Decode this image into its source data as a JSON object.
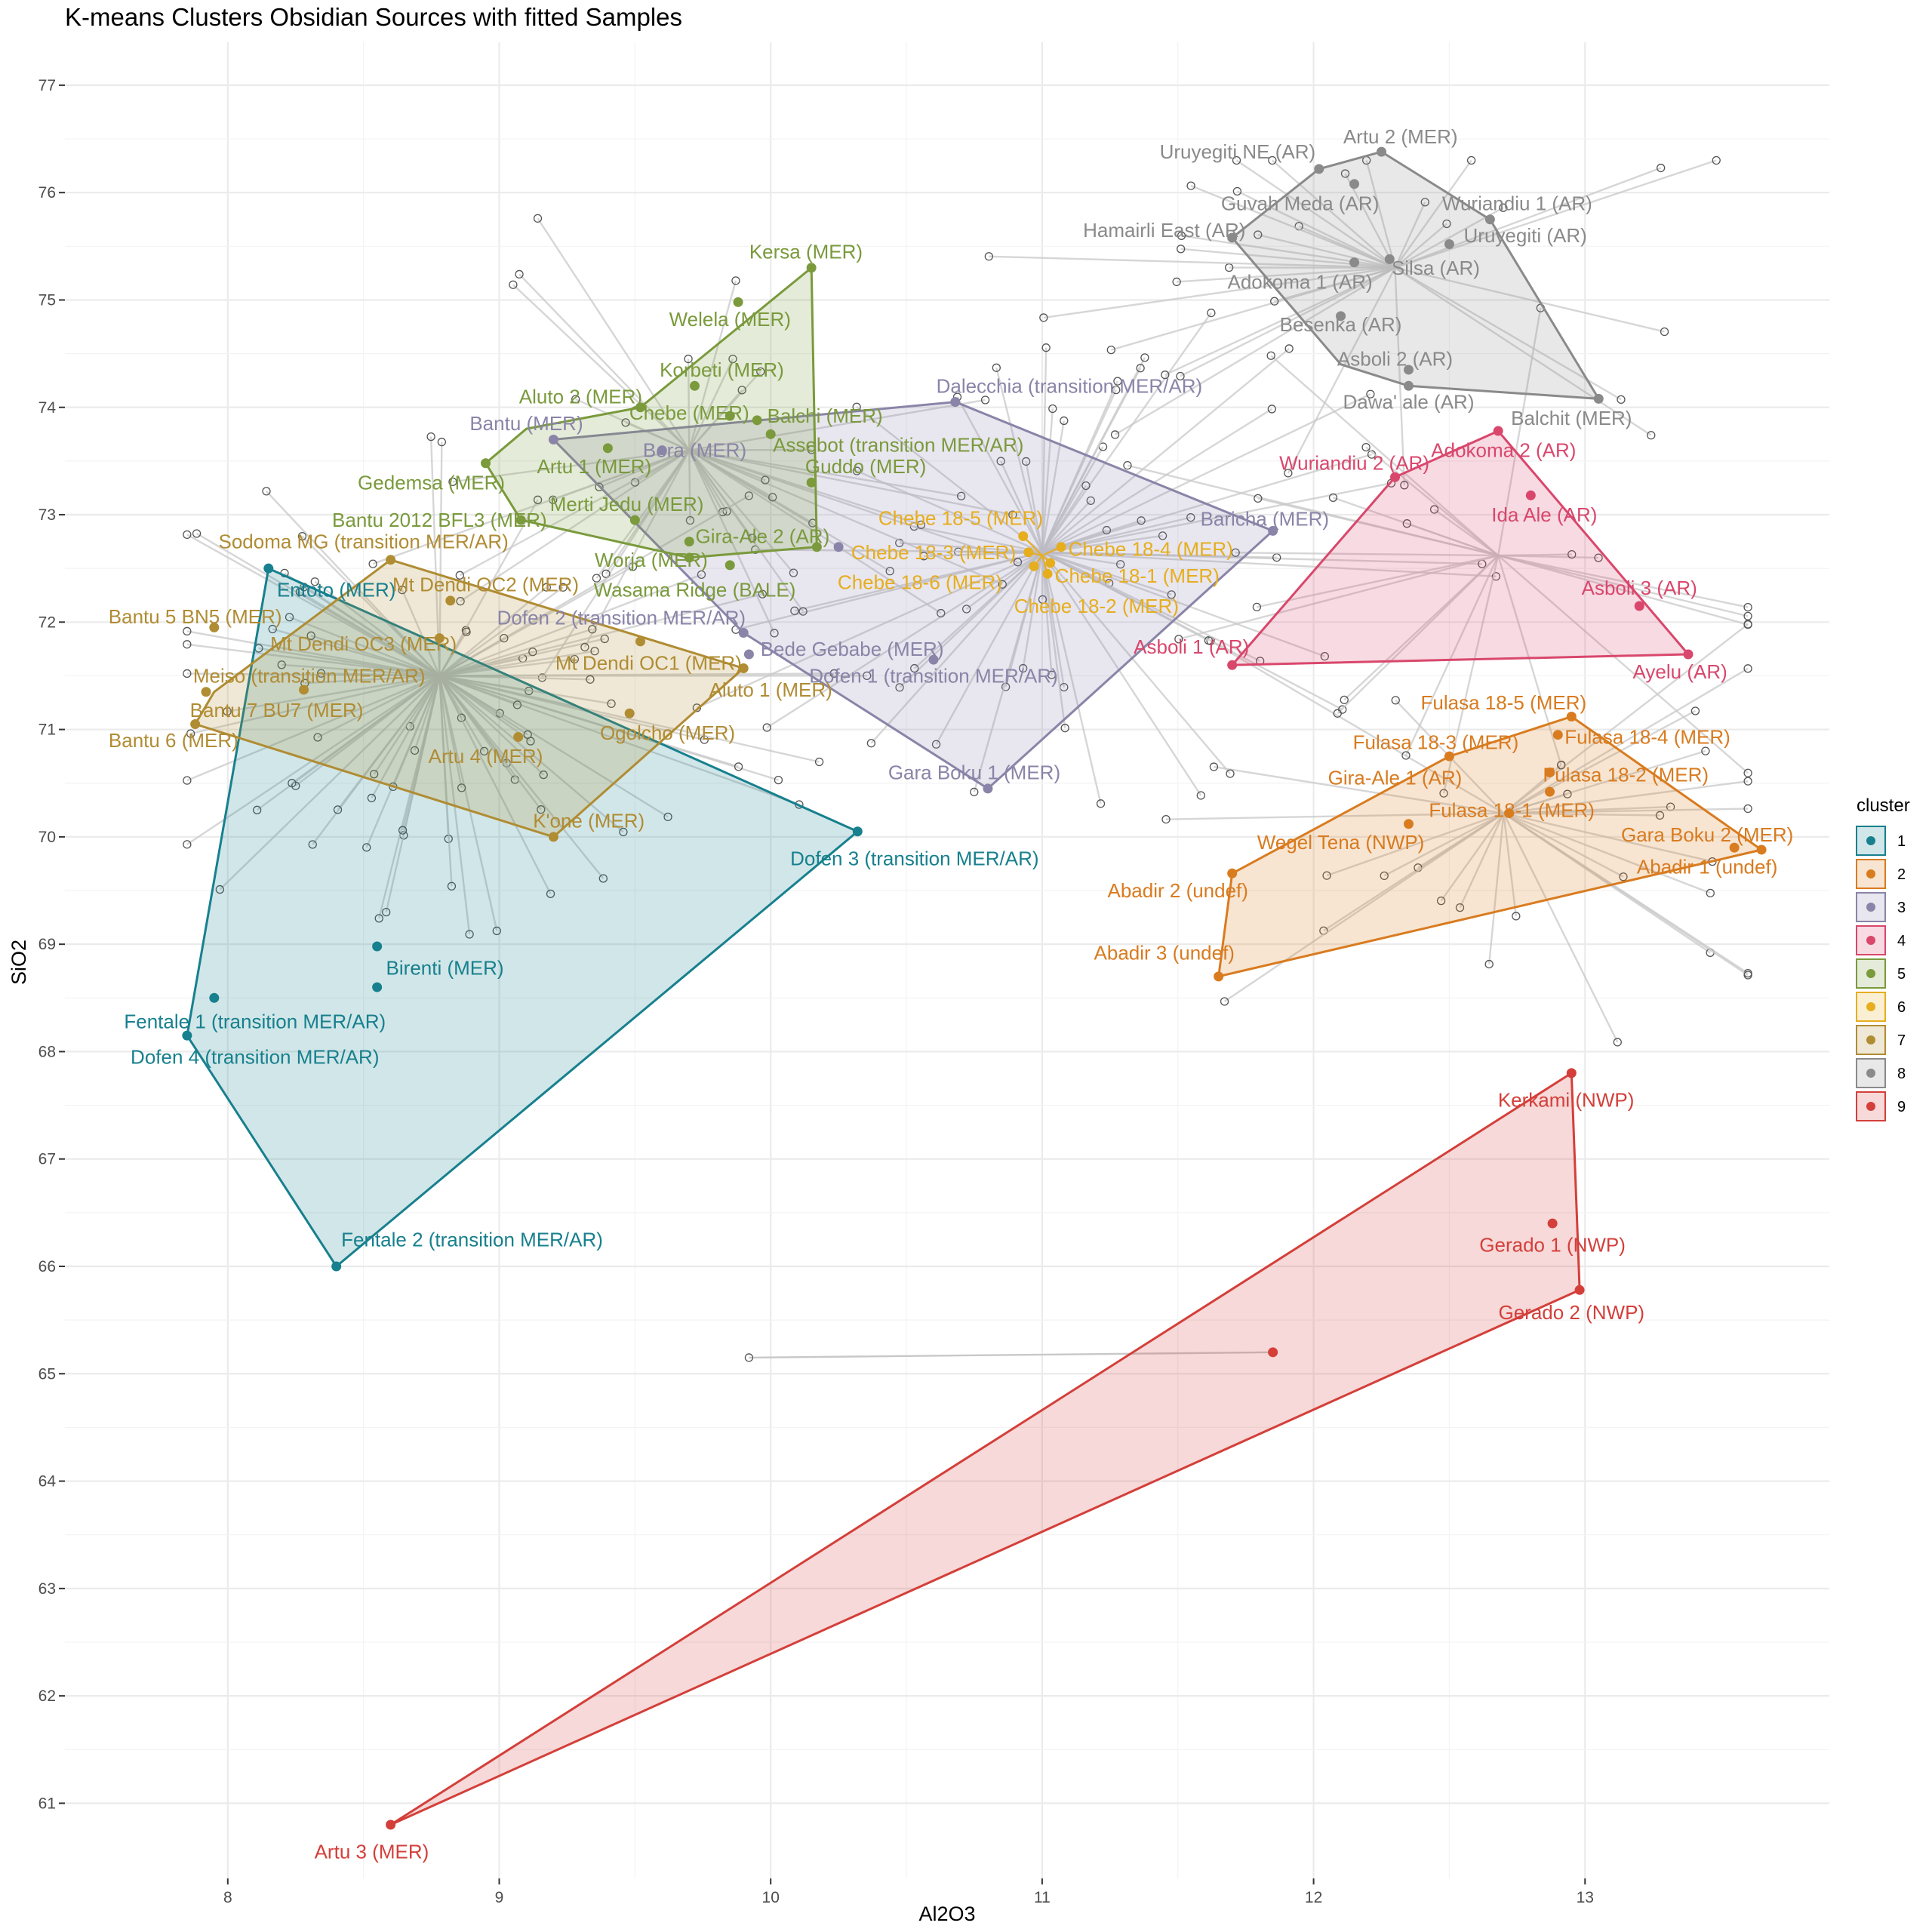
{
  "chart_data": {
    "type": "scatter",
    "title": "K-means Clusters Obsidian Sources with fitted Samples",
    "xlabel": "Al2O3",
    "ylabel": "SiO2",
    "xlim": [
      7.4,
      13.9
    ],
    "ylim": [
      60.3,
      77.4
    ],
    "xticks": [
      8,
      9,
      10,
      11,
      12,
      13
    ],
    "yticks": [
      61,
      62,
      63,
      64,
      65,
      66,
      67,
      68,
      69,
      70,
      71,
      72,
      73,
      74,
      75,
      76,
      77
    ],
    "grid": true,
    "legend": {
      "title": "cluster",
      "placement": "right",
      "entries": [
        {
          "label": "1",
          "color": "#17808e"
        },
        {
          "label": "2",
          "color": "#d97b1f"
        },
        {
          "label": "3",
          "color": "#8a84a8"
        },
        {
          "label": "4",
          "color": "#d9476c"
        },
        {
          "label": "5",
          "color": "#7a9a3c"
        },
        {
          "label": "6",
          "color": "#e6ae1e"
        },
        {
          "label": "7",
          "color": "#b08c33"
        },
        {
          "label": "8",
          "color": "#8a8a8a"
        },
        {
          "label": "9",
          "color": "#d43f3a"
        }
      ]
    },
    "series": [
      {
        "name": "1",
        "color": "#17808e",
        "centroid": [
          8.78,
          71.5
        ],
        "hull": [
          [
            8.15,
            72.5
          ],
          [
            10.32,
            70.05
          ],
          [
            8.4,
            66.0
          ],
          [
            7.85,
            68.15
          ]
        ],
        "sources": [
          {
            "label": "Entoto (MER)",
            "x": 8.15,
            "y": 72.5,
            "lx": 8.4,
            "ly": 72.3
          },
          {
            "label": "Birenti (MER)",
            "x": 8.55,
            "y": 68.98,
            "lx": 8.8,
            "ly": 68.78
          },
          {
            "label": "Fentale 1 (transition MER/AR)",
            "x": 7.95,
            "y": 68.5,
            "lx": 8.1,
            "ly": 68.28
          },
          {
            "label": "Dofen 4 (transition MER/AR)",
            "x": 7.85,
            "y": 68.15,
            "lx": 8.1,
            "ly": 67.95
          },
          {
            "label": "Fentale 2 (transition MER/AR)",
            "x": 8.4,
            "y": 66.0,
            "lx": 8.9,
            "ly": 66.25
          },
          {
            "label": "Dofen 3 (transition MER/AR)",
            "x": 10.32,
            "y": 70.05,
            "lx": 10.53,
            "ly": 69.8
          },
          {
            "x": 8.55,
            "y": 68.6
          }
        ]
      },
      {
        "name": "2",
        "color": "#d97b1f",
        "centroid": [
          12.7,
          70.22
        ],
        "hull": [
          [
            12.95,
            71.12
          ],
          [
            13.65,
            69.88
          ],
          [
            11.65,
            68.7
          ],
          [
            11.7,
            69.66
          ],
          [
            12.5,
            70.75
          ]
        ],
        "sources": [
          {
            "label": "Fulasa 18-5 (MER)",
            "x": 12.95,
            "y": 71.12,
            "lx": 12.7,
            "ly": 71.25
          },
          {
            "label": "Fulasa 18-3 (MER)",
            "x": 12.5,
            "y": 70.75,
            "lx": 12.45,
            "ly": 70.88
          },
          {
            "label": "Fulasa 18-4 (MER)",
            "x": 12.9,
            "y": 70.95,
            "lx": 13.23,
            "ly": 70.93
          },
          {
            "label": "Fulasa 18-2 (MER)",
            "x": 12.87,
            "y": 70.6,
            "lx": 13.15,
            "ly": 70.58
          },
          {
            "label": "Gira-Ale 1 (AR)",
            "x": 12.87,
            "y": 70.42,
            "lx": 12.3,
            "ly": 70.55
          },
          {
            "label": "Fulasa 18-1 (MER)",
            "x": 12.72,
            "y": 70.22,
            "lx": 12.73,
            "ly": 70.25
          },
          {
            "label": "Wegel Tena (NWP)",
            "x": 12.35,
            "y": 70.12,
            "lx": 12.1,
            "ly": 69.95
          },
          {
            "label": "Gara Boku 2 (MER)",
            "x": 13.55,
            "y": 69.9,
            "lx": 13.45,
            "ly": 70.02
          },
          {
            "label": "Abadir 1 (undef)",
            "x": 13.65,
            "y": 69.88,
            "lx": 13.45,
            "ly": 69.72
          },
          {
            "label": "Abadir 2 (undef)",
            "x": 11.7,
            "y": 69.66,
            "lx": 11.5,
            "ly": 69.5
          },
          {
            "label": "Abadir 3 (undef)",
            "x": 11.65,
            "y": 68.7,
            "lx": 11.45,
            "ly": 68.92
          }
        ]
      },
      {
        "name": "3",
        "color": "#8a84a8",
        "centroid": [
          11.0,
          72.65
        ],
        "hull": [
          [
            10.68,
            74.05
          ],
          [
            11.85,
            72.85
          ],
          [
            10.8,
            70.45
          ],
          [
            9.9,
            71.9
          ],
          [
            9.2,
            73.7
          ]
        ],
        "sources": [
          {
            "label": "Dalecchia (transition MER/AR)",
            "x": 10.68,
            "y": 74.05,
            "lx": 11.1,
            "ly": 74.2
          },
          {
            "label": "Bantu (MER)",
            "x": 9.2,
            "y": 73.7,
            "lx": 9.1,
            "ly": 73.85
          },
          {
            "label": "Bora (MER)",
            "x": 9.6,
            "y": 73.6,
            "lx": 9.72,
            "ly": 73.6
          },
          {
            "label": "Baricha (MER)",
            "x": 11.85,
            "y": 72.85,
            "lx": 11.82,
            "ly": 72.96
          },
          {
            "label": "Bede Gebabe (MER)",
            "x": 9.92,
            "y": 71.7,
            "lx": 10.3,
            "ly": 71.75
          },
          {
            "label": "Dofen 1 (transition MER/AR)",
            "x": 10.6,
            "y": 71.65,
            "lx": 10.6,
            "ly": 71.5
          },
          {
            "label": "Dofen 2 (transition MER/AR)",
            "x": 9.9,
            "y": 71.9,
            "lx": 9.45,
            "ly": 72.04
          },
          {
            "label": "Gara Boku 1 (MER)",
            "x": 10.8,
            "y": 70.45,
            "lx": 10.75,
            "ly": 70.6
          },
          {
            "x": 10.25,
            "y": 72.7
          }
        ]
      },
      {
        "name": "4",
        "color": "#d9476c",
        "centroid": [
          12.68,
          72.62
        ],
        "hull": [
          [
            12.68,
            73.78
          ],
          [
            13.38,
            71.7
          ],
          [
            11.7,
            71.6
          ],
          [
            12.3,
            73.35
          ]
        ],
        "sources": [
          {
            "label": "Wuriandiu 2 (AR)",
            "x": 12.3,
            "y": 73.35,
            "lx": 12.15,
            "ly": 73.48
          },
          {
            "label": "Adokoma 2 (AR)",
            "x": 12.68,
            "y": 73.78,
            "lx": 12.7,
            "ly": 73.6
          },
          {
            "label": "Ida Ale (AR)",
            "x": 12.8,
            "y": 73.18,
            "lx": 12.85,
            "ly": 73.0
          },
          {
            "label": "Asboli 3 (AR)",
            "x": 13.2,
            "y": 72.15,
            "lx": 13.2,
            "ly": 72.32
          },
          {
            "label": "Asboli 1 (AR)",
            "x": 11.7,
            "y": 71.6,
            "lx": 11.55,
            "ly": 71.77
          },
          {
            "label": "Ayelu (AR)",
            "x": 13.38,
            "y": 71.7,
            "lx": 13.35,
            "ly": 71.54
          }
        ]
      },
      {
        "name": "5",
        "color": "#7a9a3c",
        "centroid": [
          9.7,
          73.6
        ],
        "hull": [
          [
            10.15,
            75.3
          ],
          [
            10.17,
            72.7
          ],
          [
            9.7,
            72.6
          ],
          [
            9.08,
            72.95
          ],
          [
            8.95,
            73.48
          ],
          [
            9.1,
            73.8
          ],
          [
            9.52,
            74.0
          ]
        ],
        "sources": [
          {
            "label": "Kersa (MER)",
            "x": 10.15,
            "y": 75.3,
            "lx": 10.13,
            "ly": 75.45
          },
          {
            "label": "Welela (MER)",
            "x": 9.88,
            "y": 74.98,
            "lx": 9.85,
            "ly": 74.82
          },
          {
            "label": "Korbeti (MER)",
            "x": 9.72,
            "y": 74.2,
            "lx": 9.82,
            "ly": 74.35
          },
          {
            "label": "Aluto 2 (MER)",
            "x": 9.52,
            "y": 74.0,
            "lx": 9.3,
            "ly": 74.1
          },
          {
            "label": "Chebe (MER)",
            "x": 9.85,
            "y": 73.92,
            "lx": 9.7,
            "ly": 73.95
          },
          {
            "label": "Balchi (MER)",
            "x": 9.95,
            "y": 73.88,
            "lx": 10.2,
            "ly": 73.92
          },
          {
            "label": "Assebot (transition MER/AR)",
            "x": 10.0,
            "y": 73.75,
            "lx": 10.47,
            "ly": 73.65
          },
          {
            "label": "Gedemsa (MER)",
            "x": 8.95,
            "y": 73.48,
            "lx": 8.75,
            "ly": 73.3
          },
          {
            "label": "Artu 1 (MER)",
            "x": 9.4,
            "y": 73.62,
            "lx": 9.35,
            "ly": 73.45
          },
          {
            "label": "Guddo (MER)",
            "x": 10.15,
            "y": 73.3,
            "lx": 10.35,
            "ly": 73.45
          },
          {
            "label": "Merti Jedu (MER)",
            "x": 9.5,
            "y": 72.95,
            "lx": 9.47,
            "ly": 73.1
          },
          {
            "label": "Bantu 2012 BFL3 (MER)",
            "x": 9.08,
            "y": 72.95,
            "lx": 8.78,
            "ly": 72.95
          },
          {
            "label": "Worja (MER)",
            "x": 9.7,
            "y": 72.75,
            "lx": 9.56,
            "ly": 72.58
          },
          {
            "label": "Gira-Ale 2 (AR)",
            "x": 9.85,
            "y": 72.53,
            "lx": 9.97,
            "ly": 72.8
          },
          {
            "label": "Wasama Ridge (BALE)",
            "x": 9.7,
            "y": 72.6,
            "lx": 9.72,
            "ly": 72.3
          },
          {
            "x": 10.17,
            "y": 72.7
          }
        ]
      },
      {
        "name": "6",
        "color": "#e6ae1e",
        "centroid": [
          11.0,
          72.62
        ],
        "hull": [],
        "sources": [
          {
            "label": "Chebe 18-5 (MER)",
            "x": 10.93,
            "y": 72.8,
            "lx": 10.7,
            "ly": 72.97
          },
          {
            "label": "Chebe 18-4 (MER)",
            "x": 11.07,
            "y": 72.7,
            "lx": 11.4,
            "ly": 72.68
          },
          {
            "label": "Chebe 18-3 (MER)",
            "x": 10.95,
            "y": 72.65,
            "lx": 10.6,
            "ly": 72.65
          },
          {
            "label": "Chebe 18-1 (MER)",
            "x": 11.03,
            "y": 72.55,
            "lx": 11.35,
            "ly": 72.43
          },
          {
            "label": "Chebe 18-6 (MER)",
            "x": 10.97,
            "y": 72.52,
            "lx": 10.55,
            "ly": 72.37
          },
          {
            "label": "Chebe 18-2 (MER)",
            "x": 11.02,
            "y": 72.45,
            "lx": 11.2,
            "ly": 72.15
          }
        ]
      },
      {
        "name": "7",
        "color": "#b08c33",
        "centroid": [
          8.78,
          71.5
        ],
        "hull": [
          [
            8.6,
            72.58
          ],
          [
            9.9,
            71.57
          ],
          [
            9.2,
            70.0
          ],
          [
            7.88,
            71.05
          ],
          [
            7.95,
            71.35
          ]
        ],
        "sources": [
          {
            "label": "Sodoma MG (transition MER/AR)",
            "x": 8.6,
            "y": 72.58,
            "lx": 8.5,
            "ly": 72.75
          },
          {
            "label": "Mt Dendi OC2 (MER)",
            "x": 8.82,
            "y": 72.2,
            "lx": 8.95,
            "ly": 72.35
          },
          {
            "label": "Bantu 5 BN5 (MER)",
            "x": 7.95,
            "y": 71.95,
            "lx": 7.88,
            "ly": 72.05
          },
          {
            "label": "Mt Dendi OC3 (MER)",
            "x": 8.78,
            "y": 71.85,
            "lx": 8.5,
            "ly": 71.8
          },
          {
            "label": "Mt Dendi OC1 (MER)",
            "x": 9.52,
            "y": 71.82,
            "lx": 9.55,
            "ly": 71.62
          },
          {
            "label": "Meiso (transition MER/AR)",
            "x": 7.92,
            "y": 71.35,
            "lx": 8.3,
            "ly": 71.5
          },
          {
            "label": "Bantu 7 BU7 (MER)",
            "x": 8.28,
            "y": 71.37,
            "lx": 8.18,
            "ly": 71.18
          },
          {
            "label": "Aluto 1 (MER)",
            "x": 9.9,
            "y": 71.57,
            "lx": 10.0,
            "ly": 71.37
          },
          {
            "label": "Ogolcho (MER)",
            "x": 9.48,
            "y": 71.15,
            "lx": 9.62,
            "ly": 70.97
          },
          {
            "label": "Bantu 6 (MER)",
            "x": 7.88,
            "y": 71.05,
            "lx": 7.8,
            "ly": 70.9
          },
          {
            "label": "Artu 4 (MER)",
            "x": 9.07,
            "y": 70.93,
            "lx": 8.95,
            "ly": 70.75
          },
          {
            "label": "K'one (MER)",
            "x": 9.2,
            "y": 70.0,
            "lx": 9.33,
            "ly": 70.15
          }
        ]
      },
      {
        "name": "8",
        "color": "#8a8a8a",
        "centroid": [
          12.3,
          75.3
        ],
        "hull": [
          [
            12.25,
            76.38
          ],
          [
            12.65,
            75.75
          ],
          [
            13.05,
            74.08
          ],
          [
            12.35,
            74.2
          ],
          [
            12.1,
            74.4
          ],
          [
            11.7,
            75.58
          ],
          [
            12.02,
            76.22
          ]
        ],
        "sources": [
          {
            "label": "Artu 2 (MER)",
            "x": 12.25,
            "y": 76.38,
            "lx": 12.32,
            "ly": 76.52
          },
          {
            "label": "Uruyegiti NE (AR)",
            "x": 12.02,
            "y": 76.22,
            "lx": 11.72,
            "ly": 76.38
          },
          {
            "label": "Guvah Meda (AR)",
            "x": 12.15,
            "y": 76.08,
            "lx": 11.95,
            "ly": 75.9
          },
          {
            "label": "Wuriandiu 1 (AR)",
            "x": 12.65,
            "y": 75.75,
            "lx": 12.75,
            "ly": 75.9
          },
          {
            "label": "Uruyegiti (AR)",
            "x": 12.5,
            "y": 75.52,
            "lx": 12.78,
            "ly": 75.6
          },
          {
            "label": "Hamairli East (AR)",
            "x": 11.7,
            "y": 75.58,
            "lx": 11.45,
            "ly": 75.65
          },
          {
            "label": "Silsa (AR)",
            "x": 12.28,
            "y": 75.38,
            "lx": 12.45,
            "ly": 75.3
          },
          {
            "label": "Adokoma 1 (AR)",
            "x": 12.15,
            "y": 75.35,
            "lx": 11.95,
            "ly": 75.17
          },
          {
            "label": "Besenka (AR)",
            "x": 12.1,
            "y": 74.85,
            "lx": 12.1,
            "ly": 74.77
          },
          {
            "label": "Asboli 2 (AR)",
            "x": 12.35,
            "y": 74.35,
            "lx": 12.3,
            "ly": 74.45
          },
          {
            "label": "Dawa' ale (AR)",
            "x": 12.35,
            "y": 74.2,
            "lx": 12.35,
            "ly": 74.05
          },
          {
            "label": "Balchit (MER)",
            "x": 13.05,
            "y": 74.08,
            "lx": 12.95,
            "ly": 73.9
          }
        ]
      },
      {
        "name": "9",
        "color": "#d43f3a",
        "centroid": [
          11.85,
          65.2
        ],
        "hull": [
          [
            12.95,
            67.8
          ],
          [
            12.98,
            65.78
          ],
          [
            8.6,
            60.8
          ]
        ],
        "sources": [
          {
            "label": "Kerkami (NWP)",
            "x": 12.95,
            "y": 67.8,
            "lx": 12.93,
            "ly": 67.55
          },
          {
            "label": "Gerado 1 (NWP)",
            "x": 12.88,
            "y": 66.4,
            "lx": 12.88,
            "ly": 66.2
          },
          {
            "label": "Gerado 2 (NWP)",
            "x": 12.98,
            "y": 65.78,
            "lx": 12.95,
            "ly": 65.57
          },
          {
            "label": "Artu 3 (MER)",
            "x": 8.6,
            "y": 60.8,
            "lx": 8.53,
            "ly": 60.55
          },
          {
            "x": 11.85,
            "y": 65.2
          }
        ]
      }
    ]
  }
}
